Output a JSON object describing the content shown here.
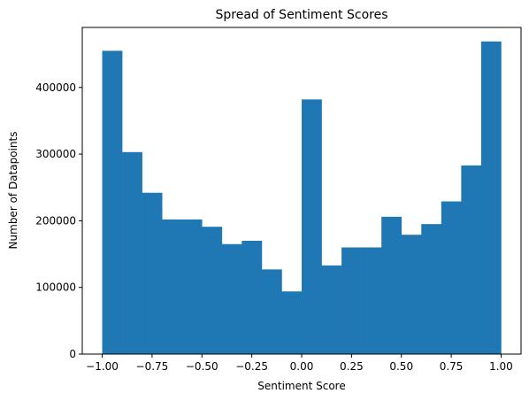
{
  "chart_data": {
    "type": "bar",
    "title": "Spread of Sentiment Scores",
    "xlabel": "Sentiment Score",
    "ylabel": "Number of Datapoints",
    "xlim": [
      -1.1,
      1.1
    ],
    "ylim": [
      0,
      490000
    ],
    "bin_edges": [
      -1.0,
      -0.9,
      -0.8,
      -0.7,
      -0.6,
      -0.5,
      -0.4,
      -0.3,
      -0.2,
      -0.1,
      0.0,
      0.1,
      0.2,
      0.3,
      0.4,
      0.5,
      0.6,
      0.7,
      0.8,
      0.9,
      1.0
    ],
    "values": [
      455000,
      303000,
      242000,
      202000,
      202000,
      191000,
      165000,
      170000,
      127000,
      94000,
      382000,
      133000,
      160000,
      160000,
      206000,
      179000,
      195000,
      229000,
      283000,
      469000
    ],
    "xticks": [
      -1.0,
      -0.75,
      -0.5,
      -0.25,
      0.0,
      0.25,
      0.5,
      0.75,
      1.0
    ],
    "xtick_labels": [
      "−1.00",
      "−0.75",
      "−0.50",
      "−0.25",
      "0.00",
      "0.25",
      "0.50",
      "0.75",
      "1.00"
    ],
    "yticks": [
      0,
      100000,
      200000,
      300000,
      400000
    ],
    "ytick_labels": [
      "0",
      "100000",
      "200000",
      "300000",
      "400000"
    ],
    "bar_color": "#1f77b4",
    "grid": false,
    "legend": "none"
  }
}
